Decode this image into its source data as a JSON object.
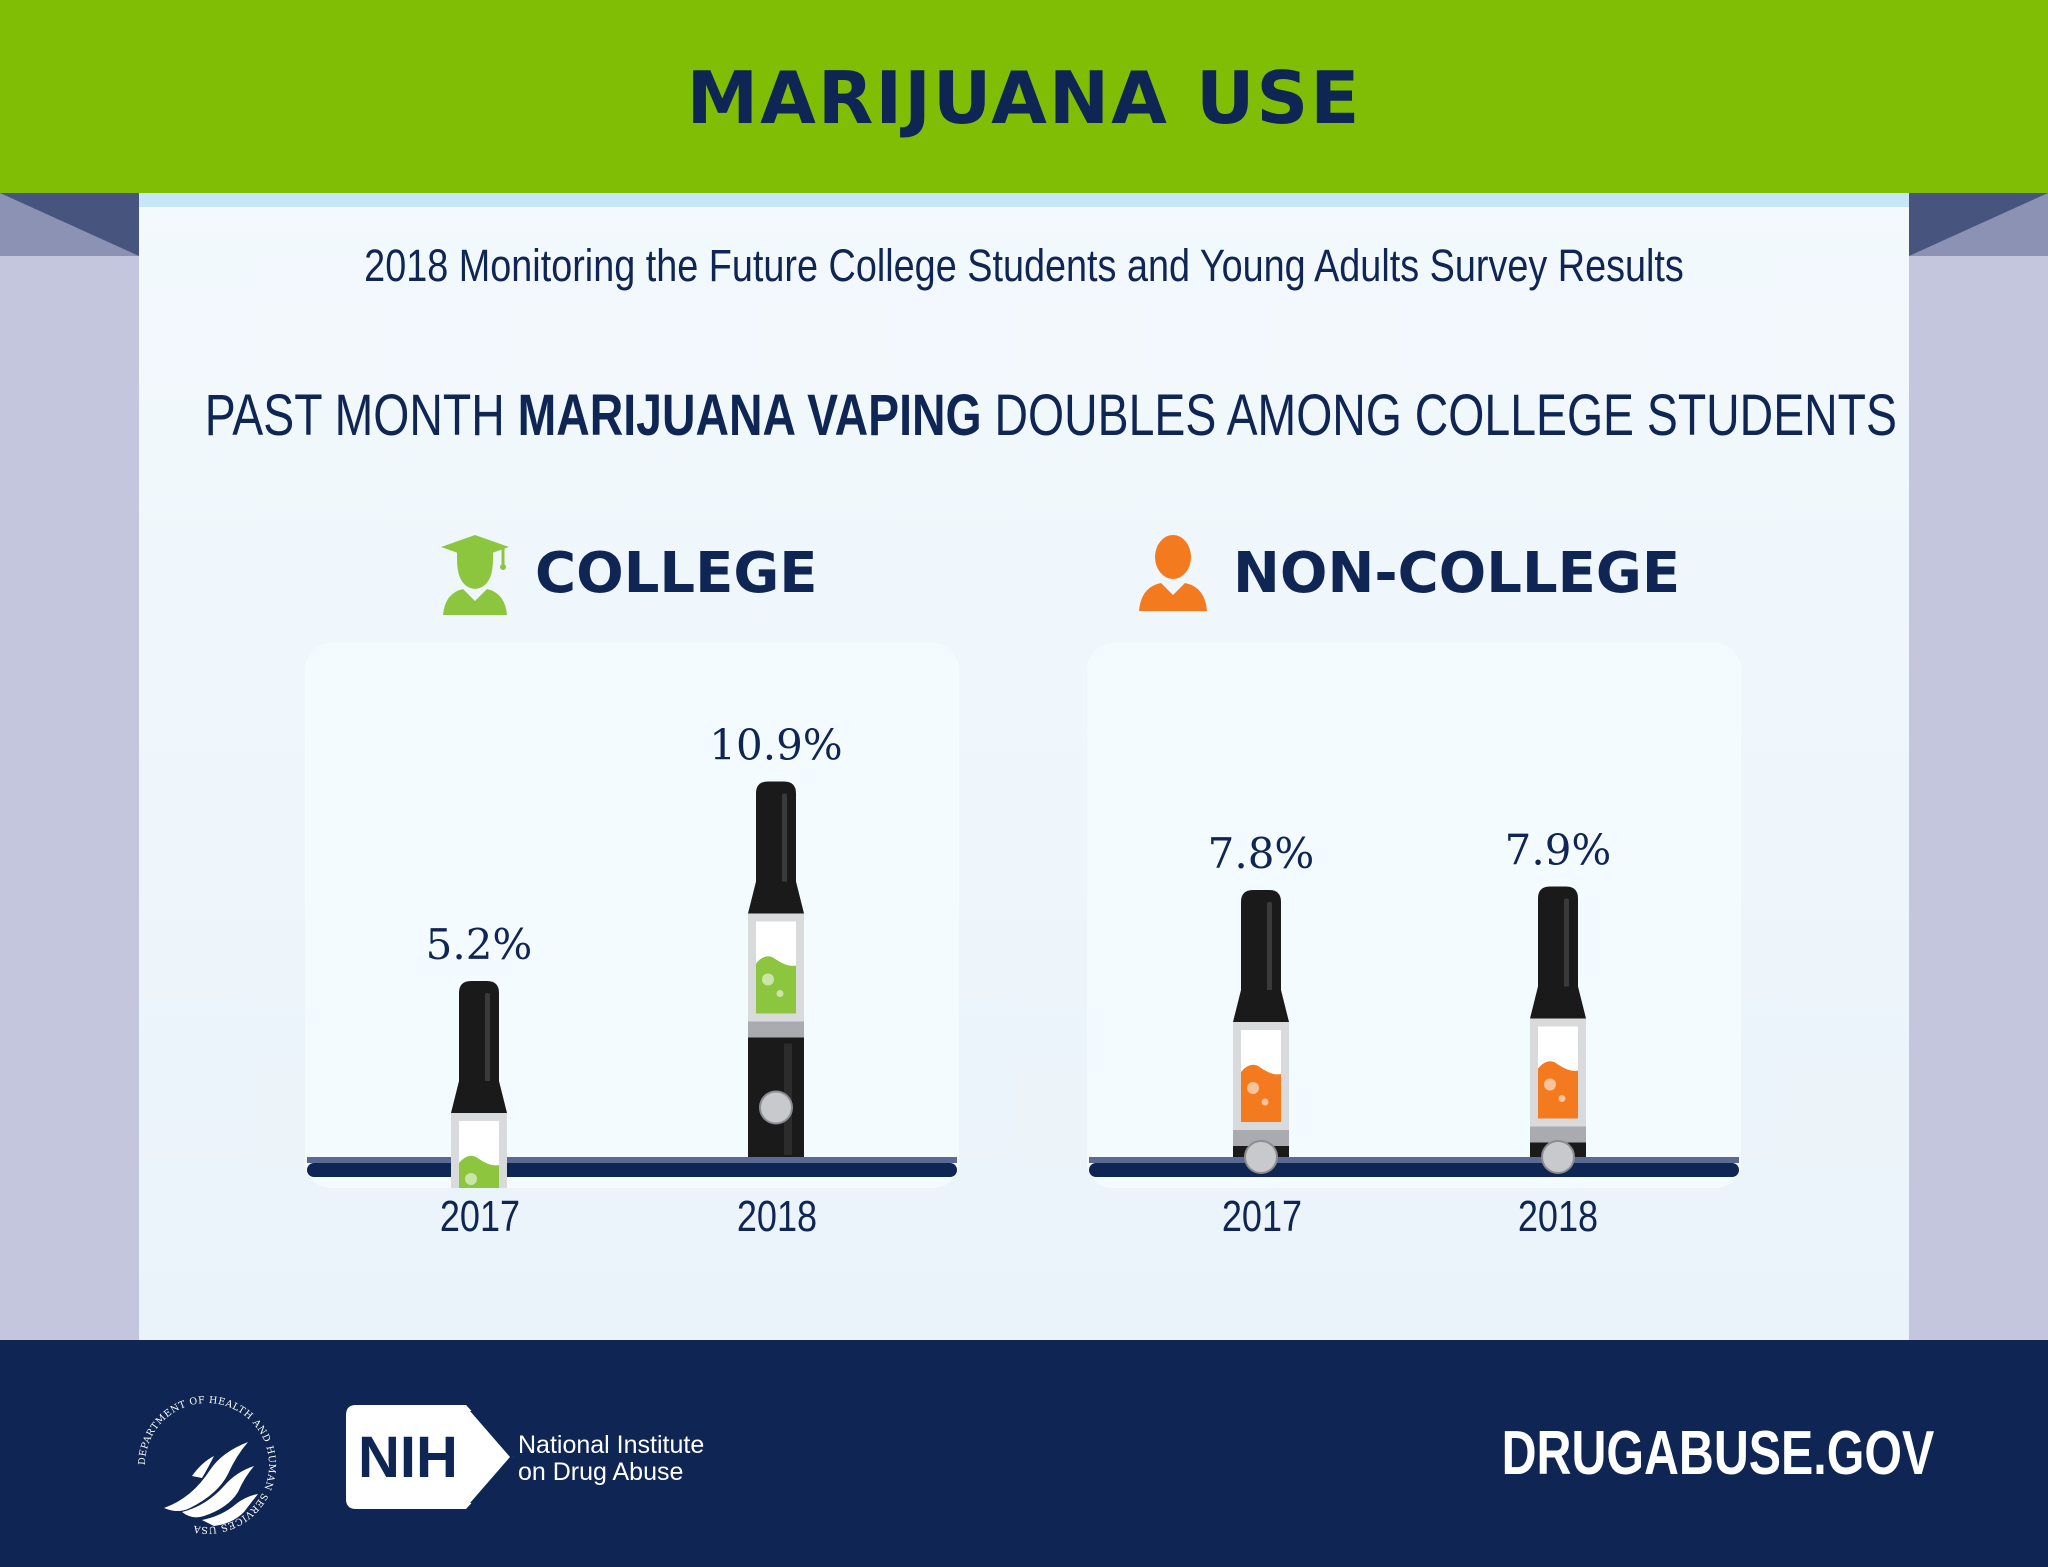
{
  "banner": {
    "title": "MARIJUANA USE"
  },
  "subtitle": "2018 Monitoring the Future College Students and Young Adults Survey Results",
  "headline": {
    "part1": "PAST MONTH ",
    "emphasis": "MARIJUANA VAPING",
    "part2": " DOUBLES AMONG COLLEGE STUDENTS"
  },
  "colors": {
    "banner": "#80bd05",
    "navy": "#0f2654",
    "college": "#8cc63f",
    "non_college": "#f47a20",
    "device": "#1a1a1a"
  },
  "groups": [
    {
      "title": "COLLEGE",
      "icon": "graduate-icon"
    },
    {
      "title": "NON-COLLEGE",
      "icon": "person-icon"
    }
  ],
  "chart_data": [
    {
      "type": "bar",
      "title": "COLLEGE",
      "categories": [
        "2017",
        "2018"
      ],
      "values": [
        5.2,
        10.9
      ],
      "value_labels": [
        "5.2%",
        "10.9%"
      ],
      "unit": "%",
      "mark": "vape-pen"
    },
    {
      "type": "bar",
      "title": "NON-COLLEGE",
      "categories": [
        "2017",
        "2018"
      ],
      "values": [
        7.8,
        7.9
      ],
      "value_labels": [
        "7.8%",
        "7.9%"
      ],
      "unit": "%",
      "mark": "vape-pen"
    }
  ],
  "footer": {
    "hhs_seal_text": "DEPARTMENT OF HEALTH AND HUMAN SERVICES USA",
    "nih_abbr": "NIH",
    "nih_name_line1": "National Institute",
    "nih_name_line2": "on Drug Abuse",
    "website": "DRUGABUSE.GOV"
  }
}
